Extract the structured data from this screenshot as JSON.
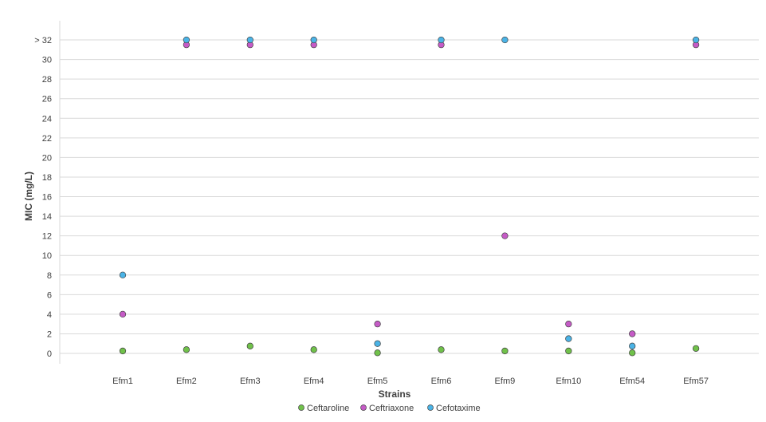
{
  "chart_data": {
    "type": "scatter",
    "xlabel": "Strains",
    "ylabel": "MIC (mg/L)",
    "categories": [
      "Efm1",
      "Efm2",
      "Efm3",
      "Efm4",
      "Efm5",
      "Efm6",
      "Efm9",
      "Efm10",
      "Efm54",
      "Efm57"
    ],
    "yticks": [
      0,
      2,
      4,
      6,
      8,
      10,
      12,
      14,
      16,
      18,
      20,
      22,
      24,
      26,
      28,
      30,
      32
    ],
    "ytick_labels": [
      "0",
      "2",
      "4",
      "6",
      "8",
      "10",
      "12",
      "14",
      "16",
      "18",
      "20",
      "22",
      "24",
      "26",
      "28",
      "30",
      "> 32"
    ],
    "ylim": [
      0,
      32
    ],
    "grid": true,
    "legend_position": "bottom",
    "series": [
      {
        "name": "Ceftaroline",
        "color": "#70c14a",
        "values": [
          0.25,
          0.38,
          0.75,
          0.38,
          0.06,
          0.38,
          0.25,
          0.25,
          0.06,
          0.5
        ]
      },
      {
        "name": "Ceftriaxone",
        "color": "#c55bc6",
        "values": [
          4,
          31.5,
          31.5,
          31.5,
          3,
          31.5,
          12,
          3,
          2,
          31.5
        ]
      },
      {
        "name": "Cefotaxime",
        "color": "#4ab3e6",
        "values": [
          8,
          32,
          32,
          32,
          1,
          32,
          32,
          1.5,
          0.75,
          32
        ]
      }
    ]
  }
}
